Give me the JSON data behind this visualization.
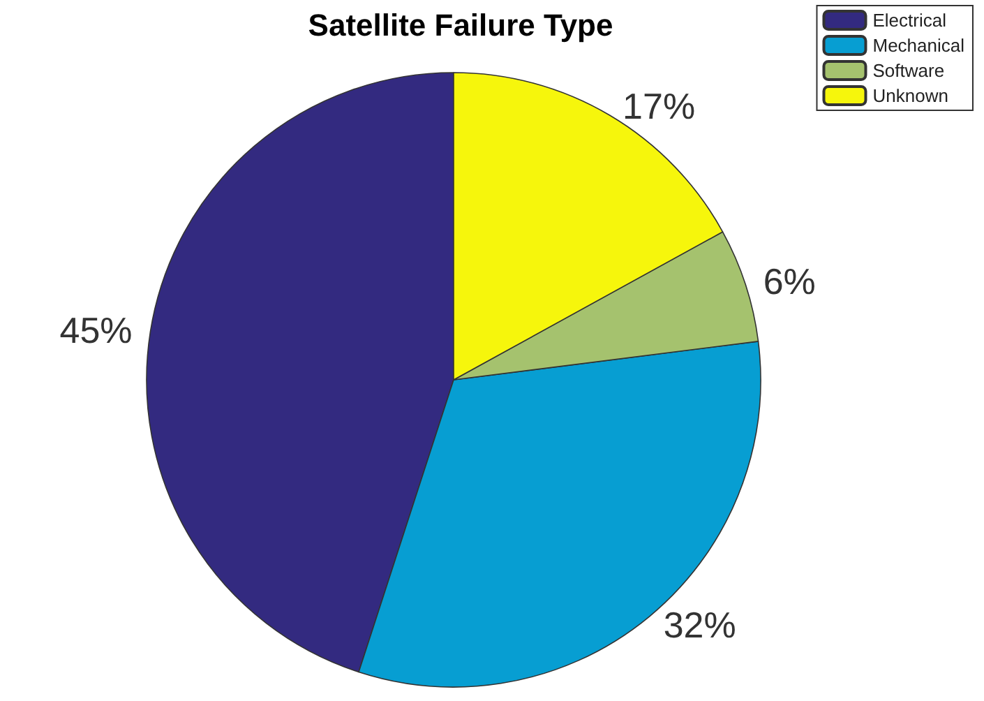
{
  "chart_data": {
    "type": "pie",
    "title": "Satellite Failure Type",
    "categories": [
      "Electrical",
      "Mechanical",
      "Software",
      "Unknown"
    ],
    "values": [
      45,
      32,
      6,
      17
    ],
    "colors": [
      "#332a80",
      "#079ed2",
      "#a5c26e",
      "#f6f60c"
    ],
    "value_labels": [
      "45%",
      "32%",
      "6%",
      "17%"
    ],
    "legend": "top right"
  }
}
